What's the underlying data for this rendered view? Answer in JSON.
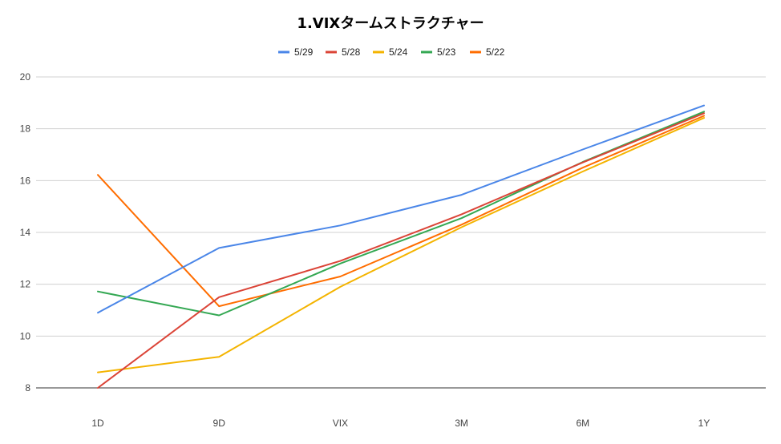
{
  "chart_data": {
    "type": "line",
    "title": "1.VIXタームストラクチャー",
    "xlabel": "",
    "ylabel": "",
    "categories": [
      "1D",
      "9D",
      "VIX",
      "3M",
      "6M",
      "1Y"
    ],
    "ylim": [
      8,
      20
    ],
    "yticks": [
      8,
      10,
      12,
      14,
      16,
      18,
      20
    ],
    "grid": true,
    "legend_position": "top-center",
    "series": [
      {
        "name": "5/29",
        "color": "#4a86e8",
        "values": [
          10.9,
          13.4,
          14.27,
          15.45,
          17.2,
          18.9
        ]
      },
      {
        "name": "5/28",
        "color": "#db4437",
        "values": [
          8.0,
          11.5,
          12.9,
          14.7,
          16.7,
          18.6
        ]
      },
      {
        "name": "5/24",
        "color": "#f4b400",
        "values": [
          8.6,
          9.2,
          11.9,
          14.2,
          16.35,
          18.42
        ]
      },
      {
        "name": "5/23",
        "color": "#34a853",
        "values": [
          11.72,
          10.8,
          12.8,
          14.55,
          16.72,
          18.66
        ]
      },
      {
        "name": "5/22",
        "color": "#ff6d00",
        "values": [
          16.22,
          11.15,
          12.3,
          14.3,
          16.5,
          18.5
        ]
      }
    ]
  }
}
